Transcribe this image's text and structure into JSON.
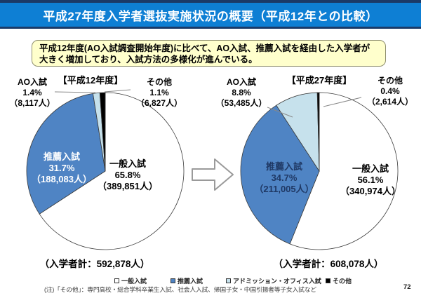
{
  "title": "平成27年度入学者選抜実施状況の概要（平成12年との比較）",
  "summary": {
    "line1": "平成12年度(AO入試調査開始年度)に比べて、AO入試、推薦入試を経由した入学者が",
    "line2": "大きく増加しており、入試方法の多様化が進んでいる。"
  },
  "chart_data": [
    {
      "type": "pie",
      "title": "【平成12年度】",
      "start_angle_deg": 0,
      "direction": "clockwise",
      "total": 592878,
      "total_label": "（入学者計：592,878人）",
      "slices": [
        {
          "label": "一般入試",
          "pct": 65.8,
          "pct_label": "65.8%",
          "count": 389851,
          "count_label": "（389,851人）",
          "color": "#ffffff"
        },
        {
          "label": "推薦入試",
          "pct": 31.7,
          "pct_label": "31.7%",
          "count": 188083,
          "count_label": "（188,083人）",
          "color": "#4f84c4"
        },
        {
          "label": "AO入試",
          "pct": 1.4,
          "pct_label": "1.4%",
          "count": 8117,
          "count_label": "（8,117人）",
          "color": "#c6e1ec"
        },
        {
          "label": "その他",
          "pct": 1.1,
          "pct_label": "1.1%",
          "count": 6827,
          "count_label": "（6,827人）",
          "color": "#000000"
        }
      ]
    },
    {
      "type": "pie",
      "title": "【平成27年度】",
      "start_angle_deg": 0,
      "direction": "clockwise",
      "total": 608078,
      "total_label": "（入学者計：608,078人）",
      "slices": [
        {
          "label": "一般入試",
          "pct": 56.1,
          "pct_label": "56.1%",
          "count": 340974,
          "count_label": "（340,974人）",
          "color": "#ffffff"
        },
        {
          "label": "推薦入試",
          "pct": 34.7,
          "pct_label": "34.7%",
          "count": 211005,
          "count_label": "（211,005人）",
          "color": "#4f84c4"
        },
        {
          "label": "AO入試",
          "pct": 8.8,
          "pct_label": "8.8%",
          "count": 53485,
          "count_label": "（53,485人）",
          "color": "#c6e1ec"
        },
        {
          "label": "その他",
          "pct": 0.4,
          "pct_label": "0.4%",
          "count": 2614,
          "count_label": "（2,614人）",
          "color": "#000000"
        }
      ]
    }
  ],
  "legend": {
    "items": [
      {
        "label": "一般入試",
        "color": "#ffffff"
      },
      {
        "label": "推薦入試",
        "color": "#4f84c4"
      },
      {
        "label": "アドミッション・オフィス入試",
        "color": "#c6e1ec"
      },
      {
        "label": "その他",
        "color": "#000000"
      }
    ]
  },
  "note": "(注)「その他」：専門高校・総合学科卒業生入試、社会人入試、帰国子女・中国引揚者等子女入試など",
  "page_number": "72",
  "colors": {
    "title_bar": "#0e7fd4",
    "title_edge": "#1b3a68",
    "summary_bg": "#ffffcc",
    "blue_slice": "#4f84c4",
    "light_blue_slice": "#c6e1ec",
    "other_slice": "#000000"
  }
}
